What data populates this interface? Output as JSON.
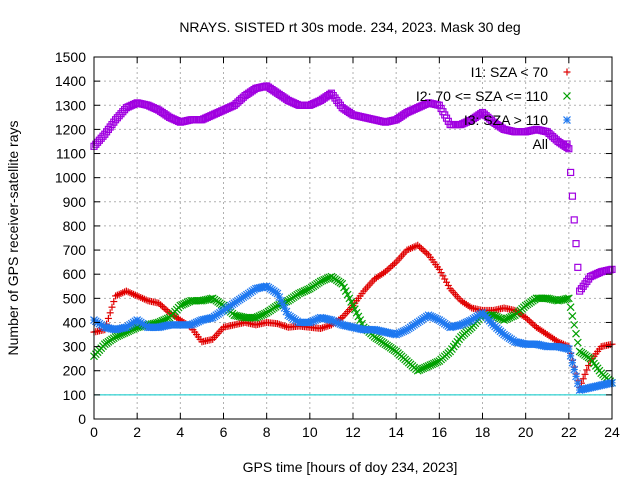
{
  "chart_data": {
    "type": "scatter",
    "title": "NRAYS. SISTED rt 30s mode. 234, 2023. Mask 30 deg",
    "xlabel": "GPS time [hours of doy 234, 2023]",
    "ylabel": "Number of GPS receiver-satellite rays",
    "xlim": [
      0,
      24
    ],
    "ylim": [
      0,
      1500
    ],
    "xticks": [
      "0",
      "2",
      "4",
      "6",
      "8",
      "10",
      "12",
      "14",
      "16",
      "18",
      "20",
      "22",
      "24"
    ],
    "yticks": [
      "0",
      "100",
      "200",
      "300",
      "400",
      "500",
      "600",
      "700",
      "800",
      "900",
      "1000",
      "1100",
      "1200",
      "1300",
      "1400",
      "1500"
    ],
    "grid": true,
    "legend_position": "top-right",
    "reference_line": {
      "y": 100,
      "color": "#00c8c8"
    },
    "series": [
      {
        "name": "I1: SZA < 70",
        "marker": "plus",
        "color": "#e00000",
        "x": [
          0,
          0.5,
          1,
          1.5,
          2,
          2.5,
          3,
          3.5,
          4,
          4.5,
          5,
          5.5,
          6,
          6.5,
          7,
          7.5,
          8,
          8.5,
          9,
          9.5,
          10,
          10.5,
          11,
          11.5,
          12,
          12.5,
          13,
          13.5,
          14,
          14.5,
          15,
          15.5,
          16,
          16.5,
          17,
          17.5,
          18,
          18.5,
          19,
          19.5,
          20,
          20.5,
          21,
          21.5,
          22,
          22.5,
          23,
          23.5,
          24
        ],
        "values": [
          360,
          370,
          510,
          530,
          510,
          490,
          480,
          440,
          410,
          380,
          320,
          330,
          380,
          390,
          400,
          390,
          400,
          395,
          380,
          385,
          380,
          375,
          390,
          420,
          470,
          530,
          580,
          610,
          650,
          700,
          720,
          680,
          620,
          540,
          490,
          460,
          450,
          450,
          460,
          450,
          420,
          380,
          350,
          320,
          300,
          130,
          240,
          300,
          310
        ]
      },
      {
        "name": "I2: 70 <= SZA <= 110",
        "marker": "cross",
        "color": "#00a000",
        "x": [
          0,
          0.5,
          1,
          1.5,
          2,
          2.5,
          3,
          3.5,
          4,
          4.5,
          5,
          5.5,
          6,
          6.5,
          7,
          7.5,
          8,
          8.5,
          9,
          9.5,
          10,
          10.5,
          11,
          11.5,
          12,
          12.5,
          13,
          13.5,
          14,
          14.5,
          15,
          15.5,
          16,
          16.5,
          17,
          17.5,
          18,
          18.5,
          19,
          19.5,
          20,
          20.5,
          21,
          21.5,
          22,
          22.5,
          23,
          23.5,
          24
        ],
        "values": [
          260,
          310,
          340,
          360,
          380,
          390,
          400,
          420,
          470,
          490,
          490,
          500,
          470,
          430,
          420,
          420,
          440,
          470,
          490,
          520,
          540,
          570,
          590,
          560,
          470,
          380,
          340,
          310,
          280,
          240,
          200,
          220,
          240,
          280,
          340,
          380,
          430,
          430,
          410,
          430,
          470,
          500,
          500,
          490,
          500,
          280,
          250,
          190,
          150
        ]
      },
      {
        "name": "I3: SZA > 110",
        "marker": "star",
        "color": "#1e78f0",
        "x": [
          0,
          0.5,
          1,
          1.5,
          2,
          2.5,
          3,
          3.5,
          4,
          4.5,
          5,
          5.5,
          6,
          6.5,
          7,
          7.5,
          8,
          8.5,
          9,
          9.5,
          10,
          10.5,
          11,
          11.5,
          12,
          12.5,
          13,
          13.5,
          14,
          14.5,
          15,
          15.5,
          16,
          16.5,
          17,
          17.5,
          18,
          18.5,
          19,
          19.5,
          20,
          20.5,
          21,
          21.5,
          22,
          22.5,
          23,
          23.5,
          24
        ],
        "values": [
          410,
          380,
          370,
          380,
          410,
          380,
          380,
          390,
          390,
          390,
          410,
          420,
          450,
          480,
          510,
          540,
          550,
          520,
          430,
          400,
          400,
          420,
          410,
          390,
          380,
          370,
          370,
          360,
          350,
          370,
          400,
          430,
          410,
          380,
          390,
          410,
          440,
          390,
          350,
          320,
          310,
          310,
          300,
          300,
          290,
          120,
          130,
          140,
          150
        ]
      },
      {
        "name": "All",
        "marker": "square",
        "color": "#a000e0",
        "x": [
          0,
          0.5,
          1,
          1.5,
          2,
          2.5,
          3,
          3.5,
          4,
          4.5,
          5,
          5.5,
          6,
          6.5,
          7,
          7.5,
          8,
          8.5,
          9,
          9.5,
          10,
          10.5,
          11,
          11.5,
          12,
          12.5,
          13,
          13.5,
          14,
          14.5,
          15,
          15.5,
          16,
          16.5,
          17,
          17.5,
          18,
          18.5,
          19,
          19.5,
          20,
          20.5,
          21,
          21.5,
          22,
          22.5,
          23,
          23.5,
          24
        ],
        "values": [
          1130,
          1180,
          1240,
          1290,
          1310,
          1300,
          1280,
          1250,
          1230,
          1240,
          1240,
          1260,
          1280,
          1300,
          1340,
          1370,
          1380,
          1350,
          1320,
          1300,
          1300,
          1320,
          1350,
          1290,
          1260,
          1250,
          1240,
          1230,
          1240,
          1270,
          1290,
          1310,
          1300,
          1220,
          1220,
          1240,
          1270,
          1230,
          1200,
          1190,
          1190,
          1200,
          1190,
          1150,
          1120,
          530,
          590,
          610,
          620
        ]
      }
    ]
  }
}
